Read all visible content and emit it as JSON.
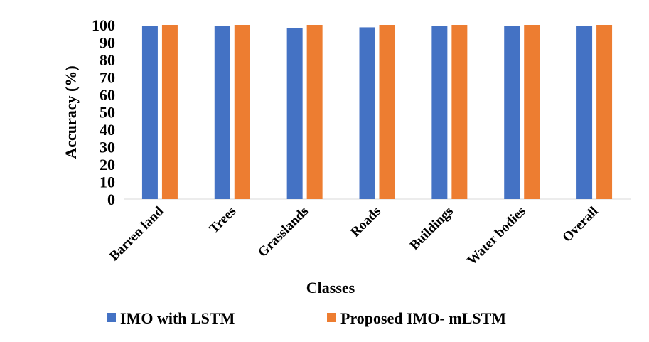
{
  "chart_data": {
    "type": "bar",
    "title": "",
    "xlabel": "Classes",
    "ylabel": "Accuracy (%)",
    "ylim": [
      0,
      100
    ],
    "yticks": [
      0,
      10,
      20,
      30,
      40,
      50,
      60,
      70,
      80,
      90,
      100
    ],
    "grid": false,
    "legend_position": "bottom",
    "categories": [
      "Barren land",
      "Trees",
      "Grasslands",
      "Roads",
      "Buildings",
      "Water bodies",
      "Overall"
    ],
    "series": [
      {
        "name": "IMO with LSTM",
        "color": "#4472c4",
        "values": [
          99.2,
          99.2,
          98.3,
          98.6,
          99.3,
          99.3,
          99.2
        ]
      },
      {
        "name": "Proposed IMO- mLSTM",
        "color": "#ed7d31",
        "values": [
          100,
          100,
          100,
          100,
          100,
          100,
          100
        ]
      }
    ]
  }
}
